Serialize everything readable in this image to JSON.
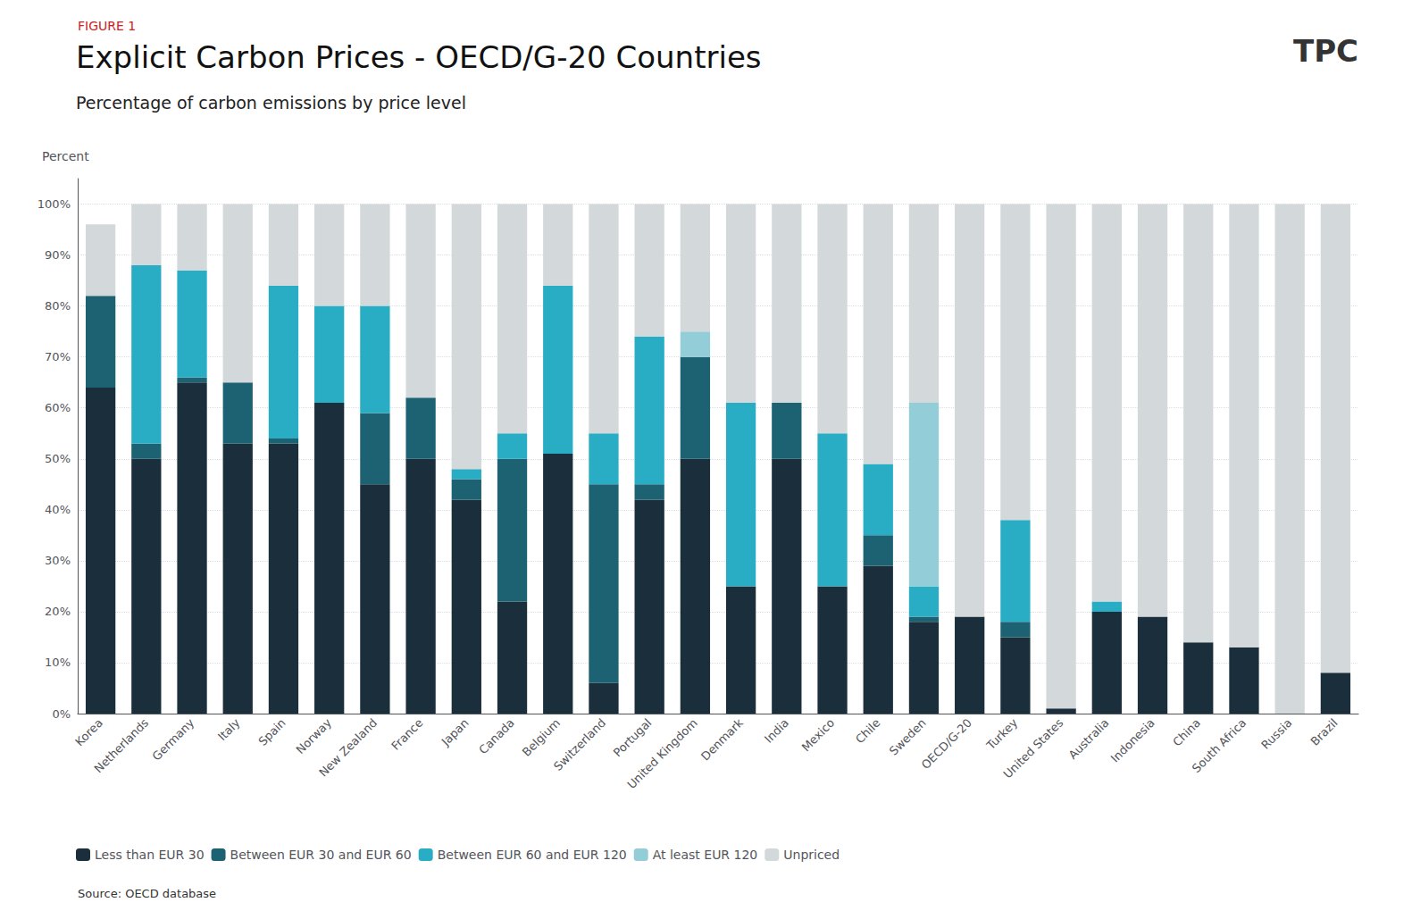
{
  "chart_data": {
    "type": "bar",
    "title": "Explicit Carbon Prices - OECD/G-20 Countries",
    "subtitle": "Percentage of carbon emissions by price level",
    "ylabel": "Percent",
    "annotations": [
      {
        "text": "FIGURE 1",
        "color": "#cc2222"
      },
      {
        "text": "Source: OECD database"
      },
      {
        "text": "TPC"
      }
    ],
    "categories": [
      "Korea",
      "Netherlands",
      "Germany",
      "Italy",
      "Spain",
      "Norway",
      "New Zealand",
      "France",
      "Japan",
      "Canada",
      "Belgium",
      "Switzerland",
      "Portugal",
      "United Kingdom",
      "Denmark",
      "India",
      "Mexico",
      "Chile",
      "Sweden",
      "OECD/G-20",
      "Turkey",
      "United States",
      "Australia",
      "Indonesia",
      "China",
      "South Africa",
      "Russia",
      "Brazil"
    ],
    "series": [
      {
        "name": "Less than EUR 30",
        "color": "#1a2e3b",
        "values": [
          64,
          50,
          65,
          53,
          53,
          61,
          45,
          50,
          42,
          22,
          51,
          6,
          42,
          50,
          25,
          50,
          25,
          29,
          18,
          19,
          15,
          1,
          20,
          19,
          14,
          13,
          0,
          8
        ]
      },
      {
        "name": "Between EUR 30 and EUR 60",
        "color": "#1d6272",
        "values": [
          18,
          3,
          1,
          12,
          1,
          0,
          14,
          12,
          4,
          28,
          0,
          39,
          3,
          20,
          0,
          11,
          0,
          6,
          1,
          0,
          3,
          0,
          0,
          0,
          0,
          0,
          0,
          0
        ]
      },
      {
        "name": "Between EUR 60 and EUR 120",
        "color": "#29adc5",
        "values": [
          0,
          35,
          21,
          0,
          30,
          19,
          21,
          0,
          2,
          5,
          33,
          10,
          29,
          0,
          36,
          0,
          30,
          14,
          6,
          0,
          20,
          0,
          2,
          0,
          0,
          0,
          0,
          0
        ]
      },
      {
        "name": "At least EUR 120",
        "color": "#93cdd8",
        "values": [
          0,
          0,
          0,
          0,
          0,
          0,
          0,
          0,
          0,
          0,
          0,
          0,
          0,
          5,
          0,
          0,
          0,
          0,
          36,
          0,
          0,
          0,
          0,
          0,
          0,
          0,
          0,
          0
        ]
      },
      {
        "name": "Unpriced",
        "color": "#d3d8db",
        "values": [
          14,
          12,
          13,
          35,
          16,
          20,
          20,
          38,
          52,
          45,
          16,
          45,
          26,
          25,
          39,
          39,
          45,
          51,
          39,
          81,
          62,
          99,
          78,
          81,
          86,
          87,
          100,
          92
        ]
      }
    ],
    "stacked": true,
    "ylim": [
      0,
      105
    ],
    "yticks": [
      {
        "value": 0,
        "label": "0%"
      },
      {
        "value": 10,
        "label": "10%"
      },
      {
        "value": 20,
        "label": "20%"
      },
      {
        "value": 30,
        "label": "30%"
      },
      {
        "value": 40,
        "label": "40%"
      },
      {
        "value": 50,
        "label": "50%"
      },
      {
        "value": 60,
        "label": "60%"
      },
      {
        "value": 70,
        "label": "70%"
      },
      {
        "value": 80,
        "label": "80%"
      },
      {
        "value": 90,
        "label": "90%"
      },
      {
        "value": 100,
        "label": "100%"
      }
    ],
    "grid": true,
    "legend": "bottom"
  }
}
